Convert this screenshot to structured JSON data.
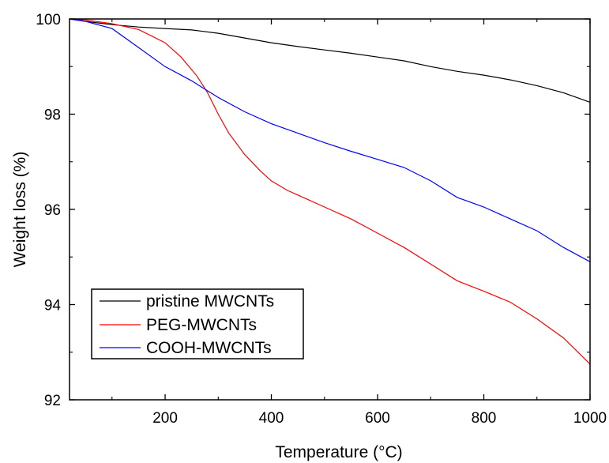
{
  "chart_data": {
    "type": "line",
    "title": "",
    "xlabel": "Temperature (°C)",
    "ylabel": "Weight loss (%)",
    "xlim": [
      20,
      1000
    ],
    "ylim": [
      92,
      100
    ],
    "x_ticks": [
      200,
      400,
      600,
      800,
      1000
    ],
    "y_ticks": [
      92,
      94,
      96,
      98,
      100
    ],
    "x_tick_labels": [
      "200",
      "400",
      "600",
      "800",
      "1000"
    ],
    "y_tick_labels": [
      "92",
      "94",
      "96",
      "98",
      "100"
    ],
    "grid": false,
    "legend": {
      "position": "bottom-left",
      "entries": [
        "pristine MWCNTs",
        "PEG-MWCNTs",
        "COOH-MWCNTs"
      ]
    },
    "series": [
      {
        "name": "pristine MWCNTs",
        "color": "#000000",
        "x": [
          20,
          50,
          100,
          150,
          200,
          250,
          300,
          350,
          400,
          450,
          500,
          550,
          600,
          650,
          700,
          750,
          800,
          850,
          900,
          950,
          1000
        ],
        "y": [
          100.0,
          99.95,
          99.88,
          99.83,
          99.8,
          99.77,
          99.7,
          99.6,
          99.5,
          99.42,
          99.35,
          99.28,
          99.2,
          99.12,
          99.0,
          98.9,
          98.82,
          98.72,
          98.6,
          98.45,
          98.25
        ]
      },
      {
        "name": "PEG-MWCNTs",
        "color": "#ff0000",
        "x": [
          20,
          50,
          100,
          150,
          200,
          230,
          260,
          280,
          300,
          320,
          350,
          380,
          400,
          430,
          460,
          500,
          550,
          600,
          650,
          700,
          750,
          800,
          850,
          900,
          950,
          1000
        ],
        "y": [
          100.0,
          99.98,
          99.9,
          99.78,
          99.5,
          99.2,
          98.8,
          98.45,
          98.0,
          97.6,
          97.15,
          96.8,
          96.6,
          96.4,
          96.25,
          96.05,
          95.8,
          95.5,
          95.2,
          94.85,
          94.5,
          94.28,
          94.05,
          93.7,
          93.3,
          92.75
        ]
      },
      {
        "name": "COOH-MWCNTs",
        "color": "#0000ff",
        "x": [
          20,
          50,
          100,
          150,
          200,
          250,
          300,
          350,
          400,
          450,
          500,
          550,
          600,
          650,
          700,
          750,
          800,
          850,
          900,
          950,
          1000
        ],
        "y": [
          100.0,
          99.95,
          99.8,
          99.4,
          99.0,
          98.7,
          98.35,
          98.05,
          97.8,
          97.6,
          97.4,
          97.22,
          97.05,
          96.88,
          96.6,
          96.25,
          96.05,
          95.8,
          95.55,
          95.2,
          94.9
        ]
      }
    ]
  }
}
